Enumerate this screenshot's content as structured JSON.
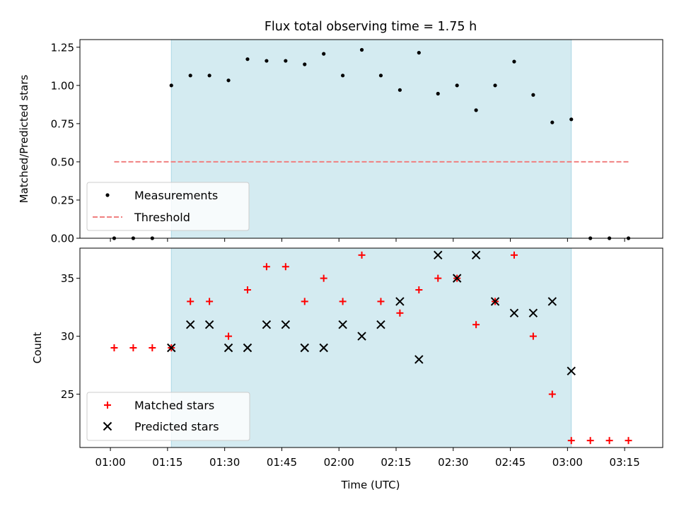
{
  "chart_data": [
    {
      "type": "scatter",
      "title": "Flux total observing time = 1.75 h",
      "xlabel": "",
      "ylabel": "Matched/Predicted stars",
      "ylim": [
        0,
        1.3
      ],
      "yticks": [
        "0.00",
        "0.25",
        "0.50",
        "0.75",
        "1.00",
        "1.25"
      ],
      "highlight_span": {
        "start": "01:16",
        "end": "03:01",
        "color": "#d4ebf1",
        "edge_color": "#add8e6"
      },
      "legend_position": "lower-left",
      "legend": {
        "measurements": "Measurements",
        "threshold": "Threshold"
      },
      "series": [
        {
          "name": "Measurements",
          "marker": "dot",
          "color": "#000000",
          "points": [
            [
              "01:01",
              0.0
            ],
            [
              "01:06",
              0.0
            ],
            [
              "01:11",
              0.0
            ],
            [
              "01:16",
              1.0
            ],
            [
              "01:21",
              1.065
            ],
            [
              "01:26",
              1.065
            ],
            [
              "01:31",
              1.033
            ],
            [
              "01:36",
              1.172
            ],
            [
              "01:41",
              1.161
            ],
            [
              "01:46",
              1.161
            ],
            [
              "01:51",
              1.138
            ],
            [
              "01:56",
              1.207
            ],
            [
              "02:01",
              1.065
            ],
            [
              "02:06",
              1.233
            ],
            [
              "02:11",
              1.065
            ],
            [
              "02:16",
              0.97
            ],
            [
              "02:21",
              1.214
            ],
            [
              "02:26",
              0.946
            ],
            [
              "02:31",
              1.0
            ],
            [
              "02:36",
              0.838
            ],
            [
              "02:41",
              1.0
            ],
            [
              "02:46",
              1.156
            ],
            [
              "02:51",
              0.938
            ],
            [
              "02:56",
              0.758
            ],
            [
              "03:01",
              0.778
            ],
            [
              "03:06",
              0.0
            ],
            [
              "03:11",
              0.0
            ],
            [
              "03:16",
              0.0
            ]
          ]
        },
        {
          "name": "Threshold",
          "style": "dashed",
          "color": "#f08080",
          "points": [
            [
              "01:01",
              0.5
            ],
            [
              "03:16",
              0.5
            ]
          ]
        }
      ]
    },
    {
      "type": "scatter",
      "title": "",
      "xlabel": "Time (UTC)",
      "ylabel": "Count",
      "ylim": [
        20.4,
        37.6
      ],
      "yticks": [
        "25",
        "30",
        "35"
      ],
      "xticks": [
        "01:00",
        "01:15",
        "01:30",
        "01:45",
        "02:00",
        "02:15",
        "02:30",
        "02:45",
        "03:00",
        "03:15"
      ],
      "highlight_span": {
        "start": "01:16",
        "end": "03:01",
        "color": "#d4ebf1",
        "edge_color": "#add8e6"
      },
      "legend_position": "lower-left",
      "legend": {
        "matched": "Matched stars",
        "predicted": "Predicted stars"
      },
      "series": [
        {
          "name": "Matched stars",
          "marker": "plus",
          "color": "#ff0000",
          "points": [
            [
              "01:01",
              29
            ],
            [
              "01:06",
              29
            ],
            [
              "01:11",
              29
            ],
            [
              "01:16",
              29
            ],
            [
              "01:21",
              33
            ],
            [
              "01:26",
              33
            ],
            [
              "01:31",
              30
            ],
            [
              "01:36",
              34
            ],
            [
              "01:41",
              36
            ],
            [
              "01:46",
              36
            ],
            [
              "01:51",
              33
            ],
            [
              "01:56",
              35
            ],
            [
              "02:01",
              33
            ],
            [
              "02:06",
              37
            ],
            [
              "02:11",
              33
            ],
            [
              "02:16",
              32
            ],
            [
              "02:21",
              34
            ],
            [
              "02:26",
              35
            ],
            [
              "02:31",
              35
            ],
            [
              "02:36",
              31
            ],
            [
              "02:41",
              33
            ],
            [
              "02:46",
              37
            ],
            [
              "02:51",
              30
            ],
            [
              "02:56",
              25
            ],
            [
              "03:01",
              21
            ],
            [
              "03:06",
              21
            ],
            [
              "03:11",
              21
            ],
            [
              "03:16",
              21
            ]
          ]
        },
        {
          "name": "Predicted stars",
          "marker": "x",
          "color": "#000000",
          "points": [
            [
              "01:16",
              29
            ],
            [
              "01:21",
              31
            ],
            [
              "01:26",
              31
            ],
            [
              "01:31",
              29
            ],
            [
              "01:36",
              29
            ],
            [
              "01:41",
              31
            ],
            [
              "01:46",
              31
            ],
            [
              "01:51",
              29
            ],
            [
              "01:56",
              29
            ],
            [
              "02:01",
              31
            ],
            [
              "02:06",
              30
            ],
            [
              "02:11",
              31
            ],
            [
              "02:16",
              33
            ],
            [
              "02:21",
              28
            ],
            [
              "02:26",
              37
            ],
            [
              "02:31",
              35
            ],
            [
              "02:36",
              37
            ],
            [
              "02:41",
              33
            ],
            [
              "02:46",
              32
            ],
            [
              "02:51",
              32
            ],
            [
              "02:56",
              33
            ],
            [
              "03:01",
              27
            ]
          ]
        }
      ]
    }
  ],
  "xaxis": {
    "start": "00:52",
    "end": "03:25"
  }
}
